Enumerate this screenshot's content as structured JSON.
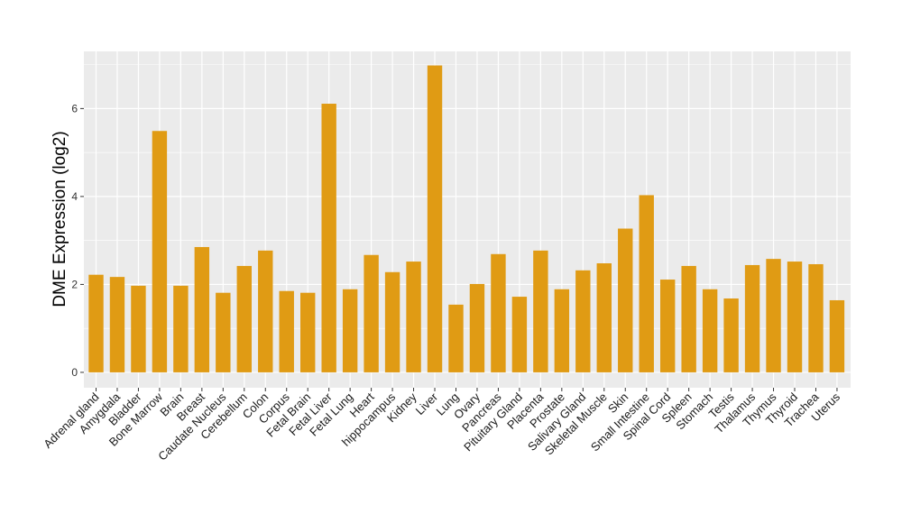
{
  "chart_data": {
    "type": "bar",
    "title": "",
    "xlabel": "",
    "ylabel": "DME Expression (log2)",
    "ylim": [
      -0.35,
      7.3
    ],
    "yticks": [
      0,
      2,
      4,
      6
    ],
    "grid": true,
    "bar_color": "#E09B14",
    "panel_background": "#EBEBEB",
    "gridline_color": "#FFFFFF",
    "categories": [
      "Adrenal gland",
      "Amygdala",
      "Bladder",
      "Bone Marrow",
      "Brain",
      "Breast",
      "Caudate Nucleus",
      "Cerebellum",
      "Colon",
      "Corpus",
      "Fetal Brain",
      "Fetal Liver",
      "Fetal Lung",
      "Heart",
      "hippocampus",
      "Kidney",
      "Liver",
      "Lung",
      "Ovary",
      "Pancreas",
      "Pituitary Gland",
      "Placenta",
      "Prostate",
      "Salivary Gland",
      "Skeletal Muscle",
      "Skin",
      "Small Intestine",
      "Spinal Cord",
      "Spleen",
      "Stomach",
      "Testis",
      "Thalamus",
      "Thymus",
      "Thyroid",
      "Trachea",
      "Uterus"
    ],
    "values": [
      2.22,
      2.17,
      1.97,
      5.49,
      1.97,
      2.85,
      1.81,
      2.42,
      2.77,
      1.85,
      1.81,
      6.11,
      1.89,
      2.67,
      2.28,
      2.52,
      6.98,
      1.54,
      2.01,
      2.69,
      1.72,
      2.77,
      1.89,
      2.32,
      2.48,
      3.27,
      4.03,
      2.11,
      2.42,
      1.89,
      1.68,
      2.44,
      2.58,
      2.52,
      2.46,
      1.64
    ]
  }
}
